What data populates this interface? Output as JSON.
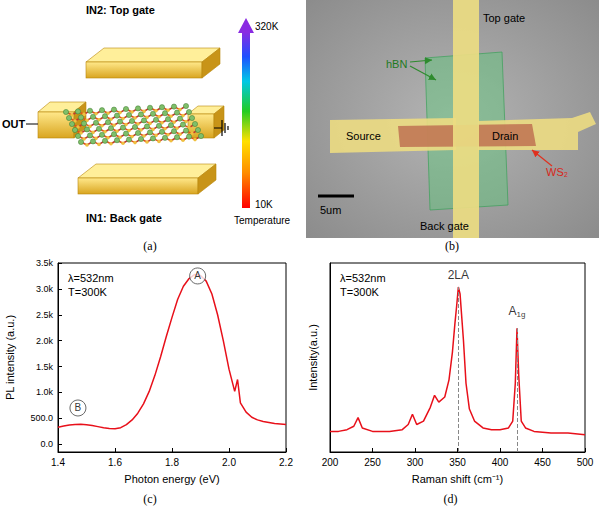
{
  "figure": {
    "a": {
      "caption": "(a)",
      "diagram": {
        "top_input": "IN2: Top gate",
        "bottom_input": "IN1: Back gate",
        "output": "OUT",
        "colorbar": {
          "max_label": "320K",
          "min_label": "10K",
          "title": "Temperature"
        }
      }
    },
    "b": {
      "caption": "(b)",
      "image": {
        "top_gate": "Top gate",
        "hbn": "hBN",
        "source": "Source",
        "drain": "Drain",
        "ws2": "WS₂",
        "back_gate": "Back gate",
        "scale_bar": "5um"
      }
    }
  },
  "chart_data": [
    {
      "type": "line",
      "caption": "(c)",
      "x_label": "Photon energy (eV)",
      "y_label": "PL intensity (a.u.)",
      "notes": [
        "λ=532nm",
        "T=300K"
      ],
      "color": "#e8101a",
      "line_style": "solid",
      "grid": false,
      "x": [
        1.4,
        1.42,
        1.44,
        1.46,
        1.48,
        1.5,
        1.52,
        1.54,
        1.56,
        1.58,
        1.6,
        1.62,
        1.64,
        1.66,
        1.68,
        1.7,
        1.72,
        1.74,
        1.76,
        1.78,
        1.8,
        1.82,
        1.84,
        1.86,
        1.88,
        1.9,
        1.92,
        1.94,
        1.96,
        1.98,
        2.0,
        2.02,
        2.03,
        2.04,
        2.06,
        2.08,
        2.1,
        2.12,
        2.14,
        2.16,
        2.18,
        2.2
      ],
      "values": [
        330,
        350,
        370,
        380,
        385,
        375,
        360,
        340,
        320,
        305,
        300,
        320,
        380,
        470,
        600,
        780,
        1020,
        1330,
        1690,
        2080,
        2450,
        2800,
        3050,
        3200,
        3280,
        3260,
        3150,
        2900,
        2500,
        2000,
        1450,
        1020,
        1250,
        800,
        620,
        520,
        470,
        440,
        420,
        400,
        390,
        380
      ],
      "xlim": [
        1.4,
        2.2
      ],
      "xticks": [
        1.4,
        1.6,
        1.8,
        {
          "value": 2,
          "label": "2.0"
        },
        2.2
      ],
      "ylim": [
        -150,
        3500
      ],
      "yticks": [
        {
          "value": 0,
          "label": "0.0"
        },
        {
          "value": 500,
          "label": "500.0"
        },
        {
          "value": 1000,
          "label": "1.0k"
        },
        {
          "value": 1500,
          "label": "1.5k"
        },
        {
          "value": 2000,
          "label": "2.0k"
        },
        {
          "value": 2500,
          "label": "2.5k"
        },
        {
          "value": 3000,
          "label": "3.0k"
        },
        {
          "value": 3500,
          "label": "3.5k"
        }
      ],
      "annotations": [
        {
          "text": "A",
          "x": 1.89,
          "y": 3250,
          "marker": "circle"
        },
        {
          "text": "B",
          "x": 1.47,
          "y": 700,
          "marker": "circle"
        }
      ]
    },
    {
      "type": "line",
      "caption": "(d)",
      "x_label": "Raman shift (cm⁻¹)",
      "y_label": "Intensity(a.u.)",
      "notes": [
        "λ=532nm",
        "T=300K"
      ],
      "color": "#e8101a",
      "line_style": "solid",
      "grid": false,
      "tick_labels": "x",
      "x": [
        200,
        210,
        220,
        228,
        233,
        238,
        250,
        270,
        285,
        292,
        297,
        302,
        310,
        318,
        323,
        328,
        335,
        340,
        344,
        347,
        349,
        351,
        353,
        357,
        360,
        364,
        370,
        380,
        390,
        400,
        410,
        415,
        418,
        420,
        422,
        425,
        430,
        440,
        460,
        480,
        500
      ],
      "values": [
        12,
        12,
        13,
        15,
        20,
        14,
        12,
        12,
        13,
        16,
        22,
        16,
        18,
        26,
        33,
        29,
        32,
        42,
        58,
        75,
        85,
        96,
        92,
        65,
        40,
        25,
        18,
        14,
        13,
        13,
        14,
        18,
        40,
        72,
        45,
        18,
        14,
        12,
        11,
        11,
        10
      ],
      "xlim": [
        200,
        500
      ],
      "xticks": [
        200,
        250,
        300,
        350,
        400,
        450,
        500
      ],
      "ylim": [
        0,
        110
      ],
      "vlines": [
        {
          "x": 351,
          "line_style": "dashed"
        },
        {
          "x": 420,
          "line_style": "dashed"
        }
      ],
      "annotations": [
        {
          "text": "2LA",
          "x": 351,
          "y": 103
        },
        {
          "text": "A1g",
          "x": 420,
          "y": 82
        }
      ]
    }
  ]
}
